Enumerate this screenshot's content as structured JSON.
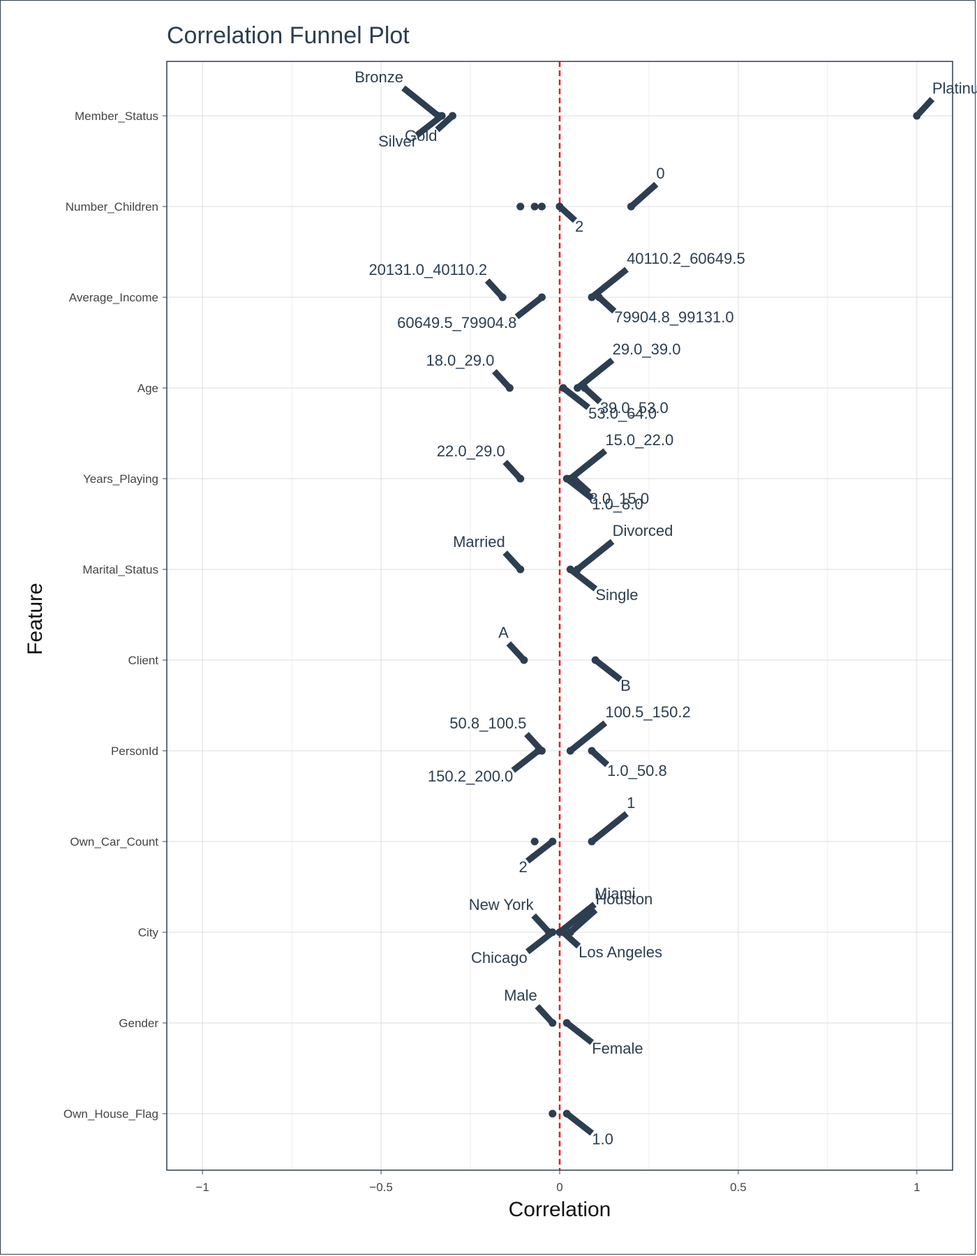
{
  "chart_data": {
    "type": "scatter",
    "title": "Correlation Funnel Plot",
    "xlabel": "Correlation",
    "ylabel": "Feature",
    "xlim": [
      -1.1,
      1.1
    ],
    "x_ticks": [
      -1,
      -0.5,
      0,
      0.5,
      1
    ],
    "x_tick_labels": [
      "−1",
      "−0.5",
      "0",
      "0.5",
      "1"
    ],
    "reference_line": {
      "x": 0,
      "color": "#e31a1c",
      "style": "dashed"
    },
    "grid": true,
    "features": [
      "Member_Status",
      "Number_Children",
      "Average_Income",
      "Age",
      "Years_Playing",
      "Marital_Status",
      "Client",
      "PersonId",
      "Own_Car_Count",
      "City",
      "Gender",
      "Own_House_Flag"
    ],
    "points": [
      {
        "feature": "Member_Status",
        "label": "Platinum",
        "x": 1.0
      },
      {
        "feature": "Member_Status",
        "label": "Silver",
        "x": -0.33
      },
      {
        "feature": "Member_Status",
        "label": "Bronze",
        "x": -0.34
      },
      {
        "feature": "Member_Status",
        "label": "Gold",
        "x": -0.3
      },
      {
        "feature": "Number_Children",
        "label": "",
        "x": -0.11
      },
      {
        "feature": "Number_Children",
        "label": "",
        "x": -0.07
      },
      {
        "feature": "Number_Children",
        "label": "",
        "x": -0.05
      },
      {
        "feature": "Number_Children",
        "label": "2",
        "x": 0.0
      },
      {
        "feature": "Number_Children",
        "label": "0",
        "x": 0.2
      },
      {
        "feature": "Average_Income",
        "label": "20131.0_40110.2",
        "x": -0.16
      },
      {
        "feature": "Average_Income",
        "label": "60649.5_79904.8",
        "x": -0.05
      },
      {
        "feature": "Average_Income",
        "label": "40110.2_60649.5",
        "x": 0.09
      },
      {
        "feature": "Average_Income",
        "label": "79904.8_99131.0",
        "x": 0.11
      },
      {
        "feature": "Age",
        "label": "18.0_29.0",
        "x": -0.14
      },
      {
        "feature": "Age",
        "label": "53.0_64.0",
        "x": 0.01
      },
      {
        "feature": "Age",
        "label": "29.0_39.0",
        "x": 0.05
      },
      {
        "feature": "Age",
        "label": "39.0_53.0",
        "x": 0.07
      },
      {
        "feature": "Years_Playing",
        "label": "22.0_29.0",
        "x": -0.11
      },
      {
        "feature": "Years_Playing",
        "label": "1.0_8.0",
        "x": 0.02
      },
      {
        "feature": "Years_Playing",
        "label": "15.0_22.0",
        "x": 0.03
      },
      {
        "feature": "Years_Playing",
        "label": "8.0_15.0",
        "x": 0.04
      },
      {
        "feature": "Marital_Status",
        "label": "Married",
        "x": -0.11
      },
      {
        "feature": "Marital_Status",
        "label": "Single",
        "x": 0.03
      },
      {
        "feature": "Marital_Status",
        "label": "Divorced",
        "x": 0.05
      },
      {
        "feature": "Client",
        "label": "A",
        "x": -0.1
      },
      {
        "feature": "Client",
        "label": "B",
        "x": 0.1
      },
      {
        "feature": "PersonId",
        "label": "50.8_100.5",
        "x": -0.05
      },
      {
        "feature": "PersonId",
        "label": "150.2_200.0",
        "x": -0.06
      },
      {
        "feature": "PersonId",
        "label": "100.5_150.2",
        "x": 0.03
      },
      {
        "feature": "PersonId",
        "label": "1.0_50.8",
        "x": 0.09
      },
      {
        "feature": "Own_Car_Count",
        "label": "",
        "x": -0.07
      },
      {
        "feature": "Own_Car_Count",
        "label": "2",
        "x": -0.02
      },
      {
        "feature": "Own_Car_Count",
        "label": "1",
        "x": 0.09
      },
      {
        "feature": "City",
        "label": "New York",
        "x": -0.03
      },
      {
        "feature": "City",
        "label": "Chicago",
        "x": -0.02
      },
      {
        "feature": "City",
        "label": "Miami",
        "x": 0.0
      },
      {
        "feature": "City",
        "label": "Los Angeles",
        "x": 0.01
      },
      {
        "feature": "City",
        "label": "Houston",
        "x": 0.03
      },
      {
        "feature": "Gender",
        "label": "Male",
        "x": -0.02
      },
      {
        "feature": "Gender",
        "label": "Female",
        "x": 0.02
      },
      {
        "feature": "Own_House_Flag",
        "label": "",
        "x": -0.02
      },
      {
        "feature": "Own_House_Flag",
        "label": "1.0",
        "x": 0.02
      }
    ],
    "colors": {
      "points": "#2c3e50",
      "title": "#2c3e50",
      "grid": "#dddddd",
      "reference_line": "#e31a1c"
    }
  }
}
